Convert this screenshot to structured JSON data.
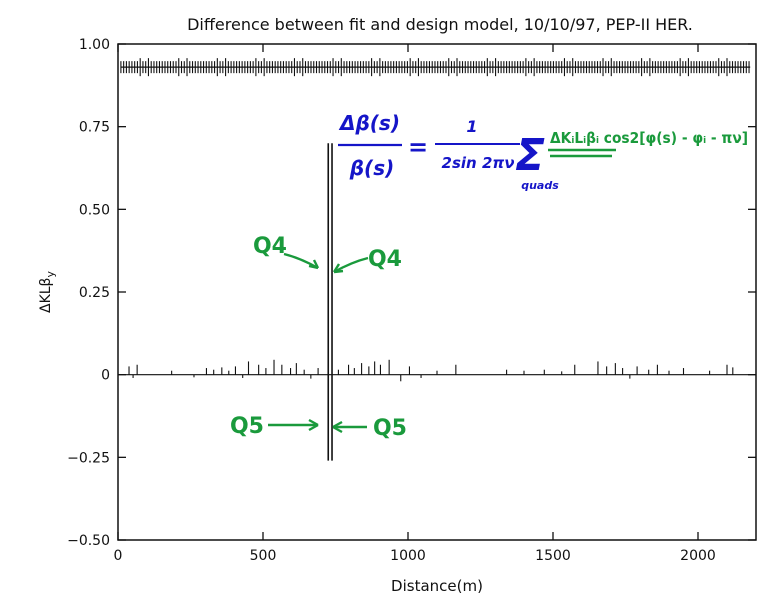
{
  "chart_data": {
    "type": "line",
    "title": "Difference between fit and design model, 10/10/97, PEP-II HER.",
    "xlabel": "Distance(m)",
    "ylabel": "ΔKLβ",
    "ylabel_sub": "y",
    "xlim": [
      0,
      2200
    ],
    "ylim": [
      -0.5,
      1.0
    ],
    "x_ticks": [
      0,
      500,
      1000,
      1500,
      2000
    ],
    "x_tick_labels": [
      "0",
      "500",
      "1000",
      "1500",
      "2000"
    ],
    "y_ticks": [
      -0.5,
      -0.25,
      0,
      0.25,
      0.5,
      0.75,
      1.0
    ],
    "y_tick_labels": [
      "−0.50",
      "−0.25",
      "0",
      "0.25",
      "0.50",
      "0.75",
      "1.00"
    ],
    "grid": false,
    "main_spikes": [
      {
        "x": 725,
        "y_top": 0.7,
        "y_bottom": -0.26
      },
      {
        "x": 738,
        "y_top": 0.7,
        "y_bottom": -0.26
      }
    ],
    "baseline_spikes": [
      {
        "x": 38,
        "y": 0.025
      },
      {
        "x": 52,
        "y": -0.01
      },
      {
        "x": 66,
        "y": 0.03
      },
      {
        "x": 185,
        "y": 0.012
      },
      {
        "x": 262,
        "y": -0.008
      },
      {
        "x": 305,
        "y": 0.02
      },
      {
        "x": 330,
        "y": 0.015
      },
      {
        "x": 358,
        "y": 0.022
      },
      {
        "x": 382,
        "y": 0.012
      },
      {
        "x": 405,
        "y": 0.025
      },
      {
        "x": 430,
        "y": -0.01
      },
      {
        "x": 450,
        "y": 0.04
      },
      {
        "x": 485,
        "y": 0.03
      },
      {
        "x": 510,
        "y": 0.02
      },
      {
        "x": 538,
        "y": 0.045
      },
      {
        "x": 565,
        "y": 0.03
      },
      {
        "x": 595,
        "y": 0.02
      },
      {
        "x": 615,
        "y": 0.035
      },
      {
        "x": 642,
        "y": 0.015
      },
      {
        "x": 665,
        "y": -0.012
      },
      {
        "x": 690,
        "y": 0.02
      },
      {
        "x": 760,
        "y": 0.015
      },
      {
        "x": 795,
        "y": 0.03
      },
      {
        "x": 815,
        "y": 0.02
      },
      {
        "x": 840,
        "y": 0.035
      },
      {
        "x": 865,
        "y": 0.025
      },
      {
        "x": 885,
        "y": 0.04
      },
      {
        "x": 905,
        "y": 0.03
      },
      {
        "x": 935,
        "y": 0.045
      },
      {
        "x": 975,
        "y": -0.02
      },
      {
        "x": 1005,
        "y": 0.025
      },
      {
        "x": 1045,
        "y": -0.01
      },
      {
        "x": 1100,
        "y": 0.012
      },
      {
        "x": 1165,
        "y": 0.03
      },
      {
        "x": 1340,
        "y": 0.015
      },
      {
        "x": 1400,
        "y": 0.012
      },
      {
        "x": 1470,
        "y": 0.015
      },
      {
        "x": 1530,
        "y": 0.01
      },
      {
        "x": 1575,
        "y": 0.03
      },
      {
        "x": 1655,
        "y": 0.04
      },
      {
        "x": 1685,
        "y": 0.025
      },
      {
        "x": 1715,
        "y": 0.035
      },
      {
        "x": 1740,
        "y": 0.02
      },
      {
        "x": 1765,
        "y": -0.012
      },
      {
        "x": 1790,
        "y": 0.025
      },
      {
        "x": 1830,
        "y": 0.015
      },
      {
        "x": 1860,
        "y": 0.03
      },
      {
        "x": 1900,
        "y": 0.012
      },
      {
        "x": 1950,
        "y": 0.02
      },
      {
        "x": 2040,
        "y": 0.012
      },
      {
        "x": 2100,
        "y": 0.03
      },
      {
        "x": 2120,
        "y": 0.022
      }
    ],
    "lattice_band_y": 0.93,
    "annotations": {
      "q4_left": "Q4",
      "q4_right": "Q4",
      "q5_left": "Q5",
      "q5_right": "Q5"
    },
    "formula": {
      "lhs_num": "Δβ(s)",
      "lhs_den": "β(s)",
      "equals": "=",
      "rhs_num": "1",
      "rhs_den": "2sin 2πν",
      "sum_sub": "quads",
      "sum_term": "ΔKᵢLᵢβᵢ cos2[φ(s) - φᵢ - πν]"
    },
    "colors": {
      "ink_blue": "#1515c8",
      "ink_green": "#1a9a3c",
      "axis": "#111111"
    }
  }
}
